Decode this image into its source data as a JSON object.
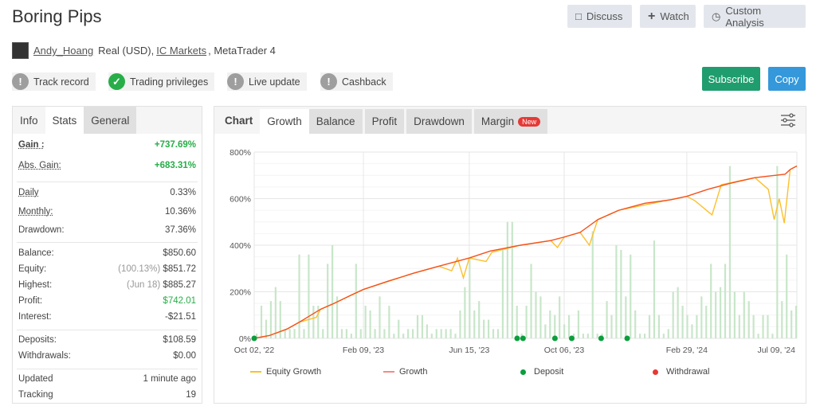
{
  "header": {
    "title": "Boring Pips",
    "user": "Andy_Hoang",
    "account_type": "Real (USD),",
    "broker": "IC Markets",
    "platform": ", MetaTrader 4",
    "buttons": {
      "discuss": "Discuss",
      "watch": "Watch",
      "custom_analysis": "Custom Analysis",
      "subscribe": "Subscribe",
      "copy": "Copy"
    },
    "badges": [
      {
        "label": "Track record",
        "status": "warning"
      },
      {
        "label": "Trading privileges",
        "status": "ok"
      },
      {
        "label": "Live update",
        "status": "warning"
      },
      {
        "label": "Cashback",
        "status": "warning"
      }
    ],
    "colors": {
      "subscribe": "#1f9d6e",
      "copy": "#3498db",
      "positive": "#27ae48"
    }
  },
  "stats": {
    "tabs": [
      "Info",
      "Stats",
      "General"
    ],
    "active_tab": "Stats",
    "groups": [
      [
        {
          "label": "Gain :",
          "value": "+737.69%",
          "style": "green"
        },
        {
          "label": "Abs. Gain:",
          "value": "+683.31%",
          "style": "green"
        }
      ],
      [
        {
          "label": "Daily",
          "value": "0.33%"
        },
        {
          "label": "Monthly:",
          "value": "10.36%"
        },
        {
          "label": "Drawdown:",
          "value": "37.36%"
        }
      ],
      [
        {
          "label": "Balance:",
          "value": "$850.60"
        },
        {
          "label": "Equity:",
          "note": "(100.13%)",
          "value": "$851.72"
        },
        {
          "label": "Highest:",
          "note": "(Jun 18)",
          "value": "$885.27"
        },
        {
          "label": "Profit:",
          "value": "$742.01",
          "style": "green"
        },
        {
          "label": "Interest:",
          "value": "-$21.51"
        }
      ],
      [
        {
          "label": "Deposits:",
          "value": "$108.59"
        },
        {
          "label": "Withdrawals:",
          "value": "$0.00"
        }
      ],
      [
        {
          "label": "Updated",
          "value": "1 minute ago"
        },
        {
          "label": "Tracking",
          "value": "19"
        }
      ]
    ]
  },
  "chart": {
    "tabs": [
      "Chart",
      "Growth",
      "Balance",
      "Profit",
      "Drawdown",
      "Margin"
    ],
    "active_tab": "Growth",
    "new_badge": "New"
  },
  "chart_data": {
    "type": "line",
    "ylim": [
      0,
      800
    ],
    "y_ticks": [
      "0%",
      "200%",
      "400%",
      "600%",
      "800%"
    ],
    "x_ticks": [
      "Oct 02, '22",
      "Feb 09, '23",
      "Jun 15, '23",
      "Oct 06, '23",
      "Feb 29, '24",
      "Jul 09, '24"
    ],
    "x_range": [
      "2022-10-02",
      "2024-07-09"
    ],
    "grid": true,
    "legend_position": "bottom",
    "series": [
      {
        "name": "Growth",
        "color": "#f4511e",
        "points": [
          [
            "2022-10-02",
            0
          ],
          [
            "2022-10-20",
            12
          ],
          [
            "2022-11-10",
            40
          ],
          [
            "2022-11-25",
            70
          ],
          [
            "2022-12-20",
            125
          ],
          [
            "2023-01-05",
            150
          ],
          [
            "2023-01-25",
            185
          ],
          [
            "2023-02-09",
            210
          ],
          [
            "2023-03-10",
            245
          ],
          [
            "2023-04-10",
            280
          ],
          [
            "2023-05-10",
            310
          ],
          [
            "2023-06-15",
            345
          ],
          [
            "2023-07-10",
            375
          ],
          [
            "2023-08-15",
            400
          ],
          [
            "2023-09-20",
            420
          ],
          [
            "2023-10-06",
            435
          ],
          [
            "2023-10-25",
            455
          ],
          [
            "2023-11-15",
            510
          ],
          [
            "2023-12-10",
            550
          ],
          [
            "2024-01-10",
            580
          ],
          [
            "2024-02-10",
            595
          ],
          [
            "2024-02-29",
            610
          ],
          [
            "2024-03-25",
            640
          ],
          [
            "2024-04-20",
            665
          ],
          [
            "2024-05-20",
            690
          ],
          [
            "2024-06-25",
            705
          ],
          [
            "2024-07-01",
            725
          ],
          [
            "2024-07-09",
            740
          ]
        ]
      },
      {
        "name": "Equity Growth",
        "color": "#fbc02d",
        "points": [
          [
            "2022-10-02",
            0
          ],
          [
            "2022-10-20",
            12
          ],
          [
            "2022-11-10",
            40
          ],
          [
            "2022-11-25",
            70
          ],
          [
            "2022-12-15",
            90
          ],
          [
            "2022-12-20",
            125
          ],
          [
            "2023-01-05",
            150
          ],
          [
            "2023-02-09",
            210
          ],
          [
            "2023-04-10",
            280
          ],
          [
            "2023-05-10",
            310
          ],
          [
            "2023-05-25",
            290
          ],
          [
            "2023-06-01",
            345
          ],
          [
            "2023-06-08",
            260
          ],
          [
            "2023-06-15",
            345
          ],
          [
            "2023-07-05",
            330
          ],
          [
            "2023-07-12",
            370
          ],
          [
            "2023-08-15",
            400
          ],
          [
            "2023-09-20",
            420
          ],
          [
            "2023-09-28",
            390
          ],
          [
            "2023-10-06",
            435
          ],
          [
            "2023-10-25",
            455
          ],
          [
            "2023-11-05",
            400
          ],
          [
            "2023-11-15",
            510
          ],
          [
            "2023-12-10",
            550
          ],
          [
            "2024-02-29",
            610
          ],
          [
            "2024-03-10",
            590
          ],
          [
            "2024-03-30",
            530
          ],
          [
            "2024-04-10",
            660
          ],
          [
            "2024-05-20",
            690
          ],
          [
            "2024-06-05",
            640
          ],
          [
            "2024-06-12",
            510
          ],
          [
            "2024-06-18",
            600
          ],
          [
            "2024-06-24",
            495
          ],
          [
            "2024-07-01",
            725
          ],
          [
            "2024-07-09",
            740
          ]
        ]
      }
    ],
    "daily_bars": {
      "color": "#c8e6c9",
      "values": [
        20,
        140,
        80,
        160,
        220,
        160,
        40,
        40,
        40,
        360,
        40,
        360,
        140,
        140,
        40,
        320,
        400,
        180,
        40,
        40,
        20,
        320,
        40,
        140,
        120,
        40,
        180,
        40,
        140,
        20,
        80,
        20,
        40,
        40,
        100,
        100,
        60,
        20,
        40,
        40,
        40,
        40,
        20,
        120,
        220,
        340,
        120,
        160,
        80,
        80,
        40,
        40,
        380,
        500,
        500,
        140,
        20,
        140,
        320,
        200,
        180,
        60,
        120,
        100,
        180,
        60,
        100,
        20,
        120,
        20,
        20,
        460,
        20,
        20,
        160,
        100,
        400,
        380,
        180,
        360,
        120,
        20,
        20,
        100,
        420,
        100,
        20,
        40,
        200,
        220,
        140,
        100,
        60,
        100,
        180,
        140,
        320,
        200,
        220,
        320,
        740,
        200,
        100,
        200,
        160,
        100,
        20,
        100,
        100,
        20,
        740,
        160,
        360,
        120,
        140
      ]
    },
    "deposits": [
      "2022-10-02",
      "2023-08-11",
      "2023-08-18",
      "2023-09-25",
      "2023-10-15",
      "2023-11-19",
      "2023-12-20"
    ],
    "withdrawals": [],
    "legend": [
      "Equity Growth",
      "Growth",
      "Deposit",
      "Withdrawal"
    ],
    "legend_colors": {
      "Deposit": "#0a9e3c",
      "Withdrawal": "#e53935"
    }
  }
}
